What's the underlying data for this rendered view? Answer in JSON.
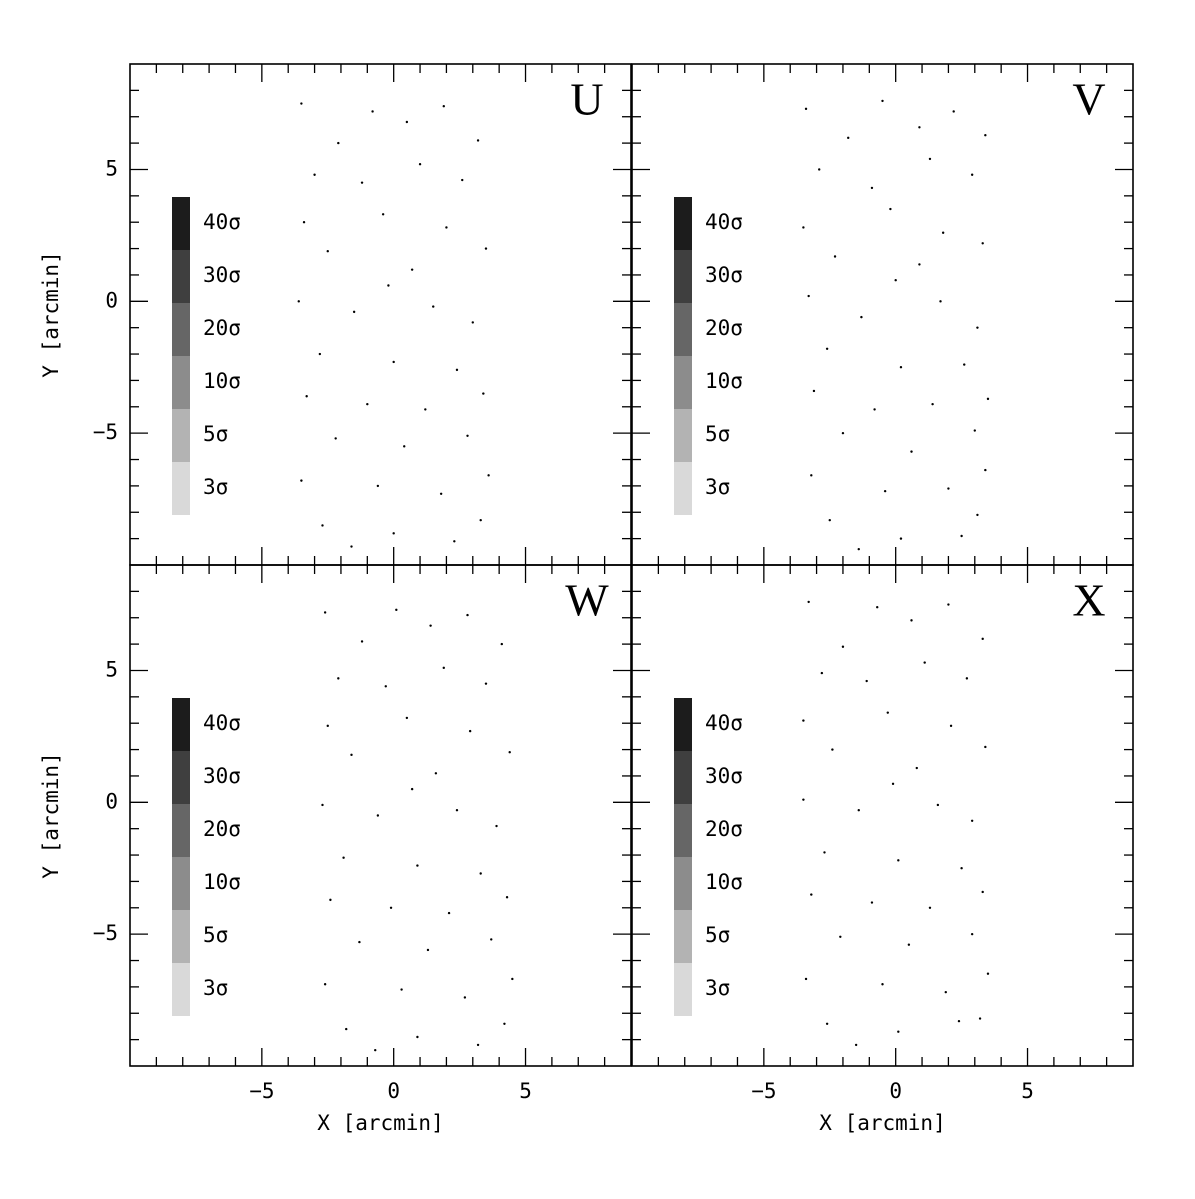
{
  "chart_data": [
    {
      "type": "scatter",
      "annotation": "U",
      "ylabel": "Y [arcmin]",
      "color": "#000000",
      "xlim": [
        -10,
        9
      ],
      "ylim": [
        -10,
        9
      ],
      "xticks": [
        {
          "value": -5,
          "label": "−5"
        },
        0,
        5
      ],
      "yticks": [
        {
          "value": -5,
          "label": "−5"
        },
        0,
        5
      ],
      "xminorticks": [
        -9,
        -8,
        -7,
        -6,
        -4,
        -3,
        -2,
        -1,
        1,
        2,
        3,
        4,
        6,
        7,
        8
      ],
      "yminorticks": [
        -9,
        -8,
        -7,
        -6,
        -4,
        -3,
        -2,
        -1,
        1,
        2,
        3,
        4,
        6,
        7,
        8
      ],
      "levels": [
        {
          "label": "40σ",
          "color": "#1c1c1c"
        },
        {
          "label": "30σ",
          "color": "#3f3f3f"
        },
        {
          "label": "20σ",
          "color": "#666666"
        },
        {
          "label": "10σ",
          "color": "#8c8c8c"
        },
        {
          "label": "5σ",
          "color": "#b3b3b3"
        },
        {
          "label": "3σ",
          "color": "#d9d9d9"
        }
      ],
      "x": [
        -3.5,
        -2.1,
        -0.8,
        0.5,
        1.9,
        3.2,
        -3.0,
        -1.2,
        1.0,
        2.6,
        -3.4,
        -0.4,
        2.0,
        3.5,
        -2.5,
        0.7,
        -3.6,
        -1.5,
        1.5,
        3.0,
        -2.8,
        0.0,
        2.4,
        -3.3,
        -1.0,
        1.2,
        3.4,
        -2.2,
        0.4,
        2.8,
        -3.5,
        -0.6,
        1.8,
        3.6,
        -2.7,
        0.0,
        2.3,
        -1.6,
        3.3,
        -0.2
      ],
      "y": [
        7.5,
        6.0,
        7.2,
        6.8,
        7.4,
        6.1,
        4.8,
        4.5,
        5.2,
        4.6,
        3.0,
        3.3,
        2.8,
        2.0,
        1.9,
        1.2,
        0.0,
        -0.4,
        -0.2,
        -0.8,
        -2.0,
        -2.3,
        -2.6,
        -3.6,
        -3.9,
        -4.1,
        -3.5,
        -5.2,
        -5.5,
        -5.1,
        -6.8,
        -7.0,
        -7.3,
        -6.6,
        -8.5,
        -8.8,
        -9.1,
        -9.3,
        -8.3,
        0.6
      ]
    },
    {
      "type": "scatter",
      "annotation": "V",
      "color": "#000000",
      "xlim": [
        -10,
        9
      ],
      "ylim": [
        -10,
        9
      ],
      "xticks": [
        {
          "value": -5,
          "label": "−5"
        },
        0,
        5
      ],
      "yticks": [
        -5,
        0,
        5
      ],
      "xminorticks": [
        -9,
        -8,
        -7,
        -6,
        -4,
        -3,
        -2,
        -1,
        1,
        2,
        3,
        4,
        6,
        7,
        8
      ],
      "yminorticks": [
        -9,
        -8,
        -7,
        -6,
        -4,
        -3,
        -2,
        -1,
        1,
        2,
        3,
        4,
        6,
        7,
        8
      ],
      "levels": [
        {
          "label": "40σ",
          "color": "#1c1c1c"
        },
        {
          "label": "30σ",
          "color": "#3f3f3f"
        },
        {
          "label": "20σ",
          "color": "#666666"
        },
        {
          "label": "10σ",
          "color": "#8c8c8c"
        },
        {
          "label": "5σ",
          "color": "#b3b3b3"
        },
        {
          "label": "3σ",
          "color": "#d9d9d9"
        }
      ],
      "x": [
        -3.4,
        -1.8,
        -0.5,
        0.9,
        2.2,
        3.4,
        -2.9,
        -0.9,
        1.3,
        2.9,
        -3.5,
        -0.2,
        1.8,
        3.3,
        -2.3,
        0.9,
        -3.3,
        -1.3,
        1.7,
        3.1,
        -2.6,
        0.2,
        2.6,
        -3.1,
        -0.8,
        1.4,
        3.5,
        -2.0,
        0.6,
        3.0,
        -3.2,
        -0.4,
        2.0,
        3.4,
        -2.5,
        0.2,
        2.5,
        -1.4,
        3.1,
        0.0
      ],
      "y": [
        7.3,
        6.2,
        7.6,
        6.6,
        7.2,
        6.3,
        5.0,
        4.3,
        5.4,
        4.8,
        2.8,
        3.5,
        2.6,
        2.2,
        1.7,
        1.4,
        0.2,
        -0.6,
        0.0,
        -1.0,
        -1.8,
        -2.5,
        -2.4,
        -3.4,
        -4.1,
        -3.9,
        -3.7,
        -5.0,
        -5.7,
        -4.9,
        -6.6,
        -7.2,
        -7.1,
        -6.4,
        -8.3,
        -9.0,
        -8.9,
        -9.4,
        -8.1,
        0.8
      ]
    },
    {
      "type": "scatter",
      "annotation": "W",
      "xlabel": "X [arcmin]",
      "ylabel": "Y [arcmin]",
      "color": "#000000",
      "xlim": [
        -10,
        9
      ],
      "ylim": [
        -10,
        9
      ],
      "xticks": [
        {
          "value": -5,
          "label": "−5"
        },
        0,
        5
      ],
      "yticks": [
        {
          "value": -5,
          "label": "−5"
        },
        0,
        5
      ],
      "xminorticks": [
        -9,
        -8,
        -7,
        -6,
        -4,
        -3,
        -2,
        -1,
        1,
        2,
        3,
        4,
        6,
        7,
        8
      ],
      "yminorticks": [
        -9,
        -8,
        -7,
        -6,
        -4,
        -3,
        -2,
        -1,
        1,
        2,
        3,
        4,
        6,
        7,
        8
      ],
      "levels": [
        {
          "label": "40σ",
          "color": "#1c1c1c"
        },
        {
          "label": "30σ",
          "color": "#3f3f3f"
        },
        {
          "label": "20σ",
          "color": "#666666"
        },
        {
          "label": "10σ",
          "color": "#8c8c8c"
        },
        {
          "label": "5σ",
          "color": "#b3b3b3"
        },
        {
          "label": "3σ",
          "color": "#d9d9d9"
        }
      ],
      "x": [
        -2.6,
        -1.2,
        0.1,
        1.4,
        2.8,
        4.1,
        -2.1,
        -0.3,
        1.9,
        3.5,
        -2.5,
        0.5,
        2.9,
        4.4,
        -1.6,
        1.6,
        -2.7,
        -0.6,
        2.4,
        3.9,
        -1.9,
        0.9,
        3.3,
        -2.4,
        -0.1,
        2.1,
        4.3,
        -1.3,
        1.3,
        3.7,
        -2.6,
        0.3,
        2.7,
        4.5,
        -1.8,
        0.9,
        3.2,
        -0.7,
        4.2,
        0.7
      ],
      "y": [
        7.2,
        6.1,
        7.3,
        6.7,
        7.1,
        6.0,
        4.7,
        4.4,
        5.1,
        4.5,
        2.9,
        3.2,
        2.7,
        1.9,
        1.8,
        1.1,
        -0.1,
        -0.5,
        -0.3,
        -0.9,
        -2.1,
        -2.4,
        -2.7,
        -3.7,
        -4.0,
        -4.2,
        -3.6,
        -5.3,
        -5.6,
        -5.2,
        -6.9,
        -7.1,
        -7.4,
        -6.7,
        -8.6,
        -8.9,
        -9.2,
        -9.4,
        -8.4,
        0.5
      ]
    },
    {
      "type": "scatter",
      "annotation": "X",
      "xlabel": "X [arcmin]",
      "color": "#000000",
      "xlim": [
        -10,
        9
      ],
      "ylim": [
        -10,
        9
      ],
      "xticks": [
        {
          "value": -5,
          "label": "−5"
        },
        0,
        5
      ],
      "yticks": [
        -5,
        0,
        5
      ],
      "xminorticks": [
        -9,
        -8,
        -7,
        -6,
        -4,
        -3,
        -2,
        -1,
        1,
        2,
        3,
        4,
        6,
        7,
        8
      ],
      "yminorticks": [
        -9,
        -8,
        -7,
        -6,
        -4,
        -3,
        -2,
        -1,
        1,
        2,
        3,
        4,
        6,
        7,
        8
      ],
      "levels": [
        {
          "label": "40σ",
          "color": "#1c1c1c"
        },
        {
          "label": "30σ",
          "color": "#3f3f3f"
        },
        {
          "label": "20σ",
          "color": "#666666"
        },
        {
          "label": "10σ",
          "color": "#8c8c8c"
        },
        {
          "label": "5σ",
          "color": "#b3b3b3"
        },
        {
          "label": "3σ",
          "color": "#d9d9d9"
        }
      ],
      "x": [
        -3.3,
        -2.0,
        -0.7,
        0.6,
        2.0,
        3.3,
        -2.8,
        -1.1,
        1.1,
        2.7,
        -3.5,
        -0.3,
        2.1,
        3.4,
        -2.4,
        0.8,
        -3.5,
        -1.4,
        1.6,
        2.9,
        -2.7,
        0.1,
        2.5,
        -3.2,
        -0.9,
        1.3,
        3.3,
        -2.1,
        0.5,
        2.9,
        -3.4,
        -0.5,
        1.9,
        3.5,
        -2.6,
        0.1,
        2.4,
        -1.5,
        3.2,
        -0.1
      ],
      "y": [
        7.6,
        5.9,
        7.4,
        6.9,
        7.5,
        6.2,
        4.9,
        4.6,
        5.3,
        4.7,
        3.1,
        3.4,
        2.9,
        2.1,
        2.0,
        1.3,
        0.1,
        -0.3,
        -0.1,
        -0.7,
        -1.9,
        -2.2,
        -2.5,
        -3.5,
        -3.8,
        -4.0,
        -3.4,
        -5.1,
        -5.4,
        -5.0,
        -6.7,
        -6.9,
        -7.2,
        -6.5,
        -8.4,
        -8.7,
        -8.3,
        -9.2,
        -8.2,
        0.7
      ]
    }
  ]
}
